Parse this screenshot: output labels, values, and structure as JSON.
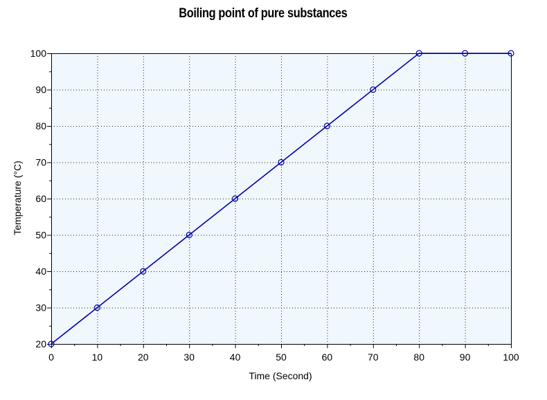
{
  "chart_data": {
    "type": "line",
    "title": "Boiling point of pure substances",
    "xlabel": "Time (Second)",
    "ylabel": "Temperature (°C)",
    "xlim": [
      0,
      100
    ],
    "ylim": [
      20,
      100
    ],
    "x_ticks": [
      "0",
      "10",
      "20",
      "30",
      "40",
      "50",
      "60",
      "70",
      "80",
      "90",
      "100"
    ],
    "y_ticks": [
      "20",
      "30",
      "40",
      "50",
      "60",
      "70",
      "80",
      "90",
      "100"
    ],
    "grid": true,
    "series": [
      {
        "x": [
          0,
          10,
          20,
          30,
          40,
          50,
          60,
          70,
          80,
          90,
          100
        ],
        "values": [
          20,
          30,
          40,
          50,
          60,
          70,
          80,
          90,
          100,
          100,
          100
        ]
      }
    ],
    "colors": {
      "plot_background": "#f0f7fd",
      "line": "#0000aa",
      "grid": "#222222"
    }
  }
}
